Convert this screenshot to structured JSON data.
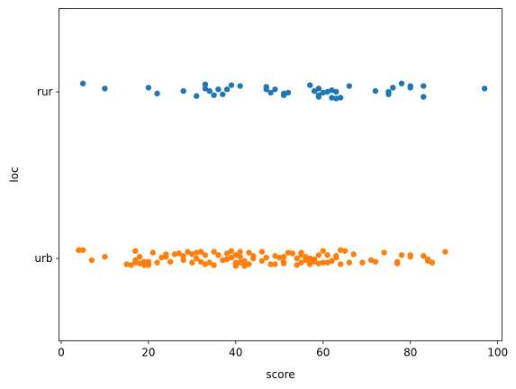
{
  "chart_data": {
    "type": "scatter",
    "title": "",
    "xlabel": "score",
    "ylabel": "loc",
    "xlim": [
      -0.5,
      101
    ],
    "x_ticks": [
      0,
      20,
      40,
      60,
      80,
      100
    ],
    "categories": [
      "rur",
      "urb"
    ],
    "grid": false,
    "series": [
      {
        "category": "rur",
        "color": "#1f77b4",
        "points": [
          [
            5,
            0.1
          ],
          [
            10,
            0.04
          ],
          [
            20,
            0.05
          ],
          [
            22,
            -0.02
          ],
          [
            28,
            0.01
          ],
          [
            31,
            -0.05
          ],
          [
            33,
            0.09
          ],
          [
            33,
            0.04
          ],
          [
            34,
            0.01
          ],
          [
            35,
            -0.04
          ],
          [
            36,
            0.03
          ],
          [
            37,
            -0.03
          ],
          [
            38,
            0.03
          ],
          [
            39,
            0.08
          ],
          [
            41,
            0.07
          ],
          [
            47,
            0.06
          ],
          [
            47,
            0.03
          ],
          [
            48,
            -0.01
          ],
          [
            49,
            0.03
          ],
          [
            51,
            -0.04
          ],
          [
            51,
            -0.02
          ],
          [
            52,
            -0.01
          ],
          [
            57,
            0.08
          ],
          [
            58,
            0.01
          ],
          [
            59,
            -0.06
          ],
          [
            59,
            -0.04
          ],
          [
            59,
            0.04
          ],
          [
            60,
            -0.01
          ],
          [
            61,
            0.0
          ],
          [
            62,
            0.02
          ],
          [
            62,
            -0.07
          ],
          [
            63,
            0.0
          ],
          [
            63,
            -0.08
          ],
          [
            64,
            -0.07
          ],
          [
            66,
            0.07
          ],
          [
            72,
            0.01
          ],
          [
            75,
            0.0
          ],
          [
            75,
            -0.03
          ],
          [
            76,
            0.05
          ],
          [
            78,
            0.1
          ],
          [
            80,
            0.07
          ],
          [
            80,
            0.05
          ],
          [
            83,
            0.07
          ],
          [
            83,
            -0.06
          ],
          [
            97,
            0.04
          ]
        ]
      },
      {
        "category": "urb",
        "color": "#ff7f0e",
        "points": [
          [
            4,
            0.1
          ],
          [
            5,
            0.1
          ],
          [
            7,
            -0.02
          ],
          [
            10,
            0.02
          ],
          [
            15,
            -0.07
          ],
          [
            16,
            -0.08
          ],
          [
            17,
            -0.05
          ],
          [
            17,
            -0.02
          ],
          [
            17,
            0.09
          ],
          [
            18,
            0.02
          ],
          [
            18,
            -0.06
          ],
          [
            19,
            -0.04
          ],
          [
            19,
            -0.08
          ],
          [
            20,
            -0.06
          ],
          [
            20,
            -0.04
          ],
          [
            20,
            -0.08
          ],
          [
            21,
            0.07
          ],
          [
            22,
            -0.05
          ],
          [
            23,
            0.01
          ],
          [
            24,
            0.02
          ],
          [
            24,
            0.05
          ],
          [
            25,
            -0.04
          ],
          [
            26,
            0.05
          ],
          [
            27,
            0.06
          ],
          [
            28,
            0.03
          ],
          [
            28,
            -0.02
          ],
          [
            29,
            0.08
          ],
          [
            30,
            0.05
          ],
          [
            30,
            -0.05
          ],
          [
            31,
            0.0
          ],
          [
            31,
            0.07
          ],
          [
            32,
            0.08
          ],
          [
            32,
            -0.04
          ],
          [
            33,
            0.04
          ],
          [
            33,
            -0.07
          ],
          [
            34,
            -0.05
          ],
          [
            35,
            0.08
          ],
          [
            35,
            -0.08
          ],
          [
            36,
            0.04
          ],
          [
            37,
            -0.02
          ],
          [
            38,
            -0.01
          ],
          [
            38,
            0.06
          ],
          [
            39,
            0.01
          ],
          [
            39,
            0.09
          ],
          [
            40,
            -0.05
          ],
          [
            40,
            -0.09
          ],
          [
            40,
            0.04
          ],
          [
            41,
            0.08
          ],
          [
            41,
            -0.05
          ],
          [
            41,
            0.02
          ],
          [
            42,
            -0.03
          ],
          [
            42,
            -0.09
          ],
          [
            43,
            0.07
          ],
          [
            43,
            -0.07
          ],
          [
            44,
            0.0
          ],
          [
            44,
            0.03
          ],
          [
            46,
            -0.03
          ],
          [
            46,
            0.08
          ],
          [
            47,
            0.01
          ],
          [
            48,
            -0.07
          ],
          [
            49,
            -0.07
          ],
          [
            49,
            0.03
          ],
          [
            50,
            0.01
          ],
          [
            51,
            0.02
          ],
          [
            51,
            -0.04
          ],
          [
            51,
            -0.06
          ],
          [
            52,
            0.07
          ],
          [
            53,
            0.06
          ],
          [
            54,
            -0.08
          ],
          [
            54,
            0.0
          ],
          [
            55,
            -0.05
          ],
          [
            55,
            0.07
          ],
          [
            55,
            0.04
          ],
          [
            56,
            0.02
          ],
          [
            56,
            -0.02
          ],
          [
            57,
            -0.05
          ],
          [
            57,
            -0.07
          ],
          [
            57,
            0.0
          ],
          [
            58,
            -0.04
          ],
          [
            58,
            -0.01
          ],
          [
            59,
            0.04
          ],
          [
            59,
            -0.06
          ],
          [
            60,
            0.09
          ],
          [
            60,
            -0.05
          ],
          [
            61,
            -0.05
          ],
          [
            61,
            0.04
          ],
          [
            62,
            -0.03
          ],
          [
            63,
            0.01
          ],
          [
            63,
            0.03
          ],
          [
            64,
            0.1
          ],
          [
            64,
            -0.07
          ],
          [
            65,
            0.09
          ],
          [
            66,
            -0.05
          ],
          [
            67,
            0.05
          ],
          [
            69,
            -0.05
          ],
          [
            71,
            -0.02
          ],
          [
            72,
            -0.04
          ],
          [
            74,
            0.07
          ],
          [
            77,
            -0.06
          ],
          [
            77,
            -0.04
          ],
          [
            78,
            0.04
          ],
          [
            80,
            0.04
          ],
          [
            80,
            0.02
          ],
          [
            83,
            0.03
          ],
          [
            84,
            -0.01
          ],
          [
            84,
            -0.03
          ],
          [
            85,
            -0.05
          ],
          [
            88,
            0.08
          ]
        ]
      }
    ]
  }
}
